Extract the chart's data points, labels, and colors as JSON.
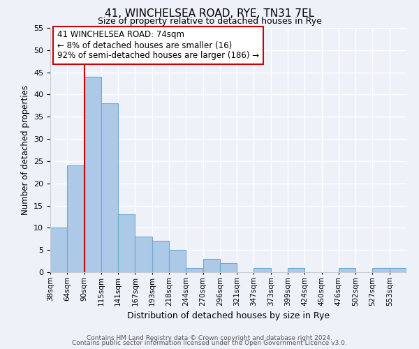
{
  "title": "41, WINCHELSEA ROAD, RYE, TN31 7EL",
  "subtitle": "Size of property relative to detached houses in Rye",
  "xlabel": "Distribution of detached houses by size in Rye",
  "ylabel": "Number of detached properties",
  "footer_lines": [
    "Contains HM Land Registry data © Crown copyright and database right 2024.",
    "Contains public sector information licensed under the Open Government Licence v3.0."
  ],
  "bin_labels": [
    "38sqm",
    "64sqm",
    "90sqm",
    "115sqm",
    "141sqm",
    "167sqm",
    "193sqm",
    "218sqm",
    "244sqm",
    "270sqm",
    "296sqm",
    "321sqm",
    "347sqm",
    "373sqm",
    "399sqm",
    "424sqm",
    "450sqm",
    "476sqm",
    "502sqm",
    "527sqm",
    "553sqm"
  ],
  "bar_heights": [
    10,
    24,
    44,
    38,
    13,
    8,
    7,
    5,
    1,
    3,
    2,
    0,
    1,
    0,
    1,
    0,
    0,
    1,
    0,
    1,
    1
  ],
  "bar_color": "#adc9e8",
  "bar_edge_color": "#6aaad4",
  "ylim": [
    0,
    55
  ],
  "yticks": [
    0,
    5,
    10,
    15,
    20,
    25,
    30,
    35,
    40,
    45,
    50,
    55
  ],
  "property_line_x": 2,
  "property_line_color": "#cc0000",
  "annotation_text_line1": "41 WINCHELSEA ROAD: 74sqm",
  "annotation_text_line2": "← 8% of detached houses are smaller (16)",
  "annotation_text_line3": "92% of semi-detached houses are larger (186) →",
  "annotation_box_color": "#ffffff",
  "annotation_box_edge_color": "#cc0000",
  "background_color": "#eef2f8"
}
